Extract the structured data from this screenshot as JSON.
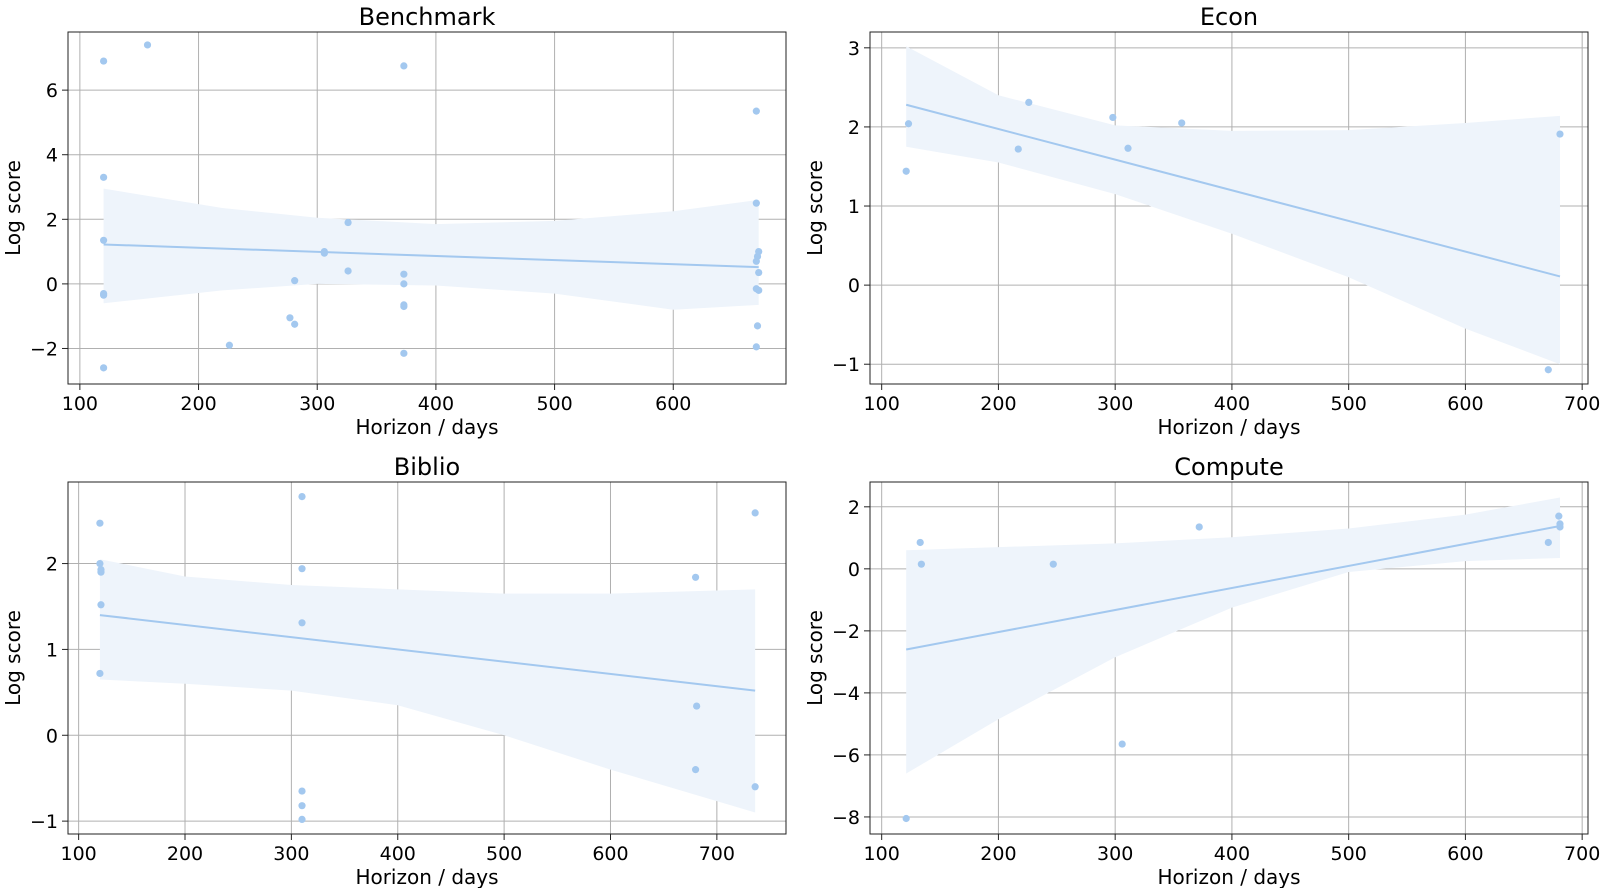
{
  "colors": {
    "point": "#a3c8ef",
    "line": "#a3c8ef",
    "band": "#eef4fb"
  },
  "chart_data": [
    {
      "type": "scatter",
      "title": "Benchmark",
      "xlabel": "Horizon / days",
      "ylabel": "Log score",
      "xlim": [
        90,
        695
      ],
      "ylim": [
        -3.1,
        7.8
      ],
      "xticks": [
        100,
        200,
        300,
        400,
        500,
        600
      ],
      "xtick_labels": [
        "100",
        "200",
        "300",
        "400",
        "500",
        "600"
      ],
      "yticks": [
        -2,
        0,
        2,
        4,
        6
      ],
      "ytick_labels": [
        "−2",
        "0",
        "2",
        "4",
        "6"
      ],
      "grid": true,
      "points": [
        [
          120,
          6.9
        ],
        [
          157,
          7.4
        ],
        [
          120,
          3.3
        ],
        [
          120,
          1.35
        ],
        [
          120,
          -0.3
        ],
        [
          120,
          -0.35
        ],
        [
          120,
          -2.6
        ],
        [
          226,
          -1.9
        ],
        [
          277,
          -1.05
        ],
        [
          281,
          -1.25
        ],
        [
          281,
          0.1
        ],
        [
          306,
          0.95
        ],
        [
          306,
          1.0
        ],
        [
          326,
          1.9
        ],
        [
          326,
          0.4
        ],
        [
          373,
          6.75
        ],
        [
          373,
          0.3
        ],
        [
          373,
          0.0
        ],
        [
          373,
          -0.65
        ],
        [
          373,
          -0.7
        ],
        [
          373,
          -2.15
        ],
        [
          670,
          5.35
        ],
        [
          670,
          2.5
        ],
        [
          672,
          1.0
        ],
        [
          671,
          0.85
        ],
        [
          670,
          0.7
        ],
        [
          672,
          0.35
        ],
        [
          670,
          -0.15
        ],
        [
          672,
          -0.2
        ],
        [
          671,
          -1.3
        ],
        [
          670,
          -1.95
        ]
      ],
      "regression": {
        "x": [
          120,
          672
        ],
        "y": [
          1.22,
          0.52
        ]
      },
      "ci": {
        "x": [
          120,
          220,
          300,
          400,
          500,
          600,
          672
        ],
        "upper": [
          2.95,
          2.35,
          2.05,
          1.85,
          1.95,
          2.25,
          2.6
        ],
        "lower": [
          -0.6,
          -0.2,
          0.0,
          -0.05,
          -0.3,
          -0.8,
          -0.65
        ]
      }
    },
    {
      "type": "scatter",
      "title": "Econ",
      "xlabel": "Horizon / days",
      "ylabel": "Log score",
      "xlim": [
        90,
        705
      ],
      "ylim": [
        -1.25,
        3.2
      ],
      "xticks": [
        100,
        200,
        300,
        400,
        500,
        600,
        700
      ],
      "xtick_labels": [
        "100",
        "200",
        "300",
        "400",
        "500",
        "600",
        "700"
      ],
      "yticks": [
        -1,
        0,
        1,
        2,
        3
      ],
      "ytick_labels": [
        "−1",
        "0",
        "1",
        "2",
        "3"
      ],
      "grid": true,
      "points": [
        [
          121,
          1.44
        ],
        [
          123,
          2.04
        ],
        [
          217,
          1.72
        ],
        [
          226,
          2.31
        ],
        [
          298,
          2.12
        ],
        [
          311,
          1.73
        ],
        [
          357,
          2.05
        ],
        [
          671,
          -1.07
        ],
        [
          681,
          1.91
        ]
      ],
      "regression": {
        "x": [
          121,
          681
        ],
        "y": [
          2.28,
          0.11
        ]
      },
      "ci": {
        "x": [
          121,
          200,
          300,
          400,
          500,
          600,
          681
        ],
        "upper": [
          3.02,
          2.4,
          2.02,
          1.95,
          1.96,
          2.05,
          2.14
        ],
        "lower": [
          1.75,
          1.55,
          1.15,
          0.65,
          0.1,
          -0.55,
          -1.0
        ]
      }
    },
    {
      "type": "scatter",
      "title": "Biblio",
      "xlabel": "Horizon / days",
      "ylabel": "Log score",
      "xlim": [
        90,
        765
      ],
      "ylim": [
        -1.15,
        2.95
      ],
      "xticks": [
        100,
        200,
        300,
        400,
        500,
        600,
        700
      ],
      "xtick_labels": [
        "100",
        "200",
        "300",
        "400",
        "500",
        "600",
        "700"
      ],
      "yticks": [
        -1,
        0,
        1,
        2
      ],
      "ytick_labels": [
        "−1",
        "0",
        "1",
        "2"
      ],
      "grid": true,
      "points": [
        [
          120,
          2.47
        ],
        [
          120,
          2.0
        ],
        [
          121,
          1.93
        ],
        [
          121,
          1.9
        ],
        [
          121,
          1.52
        ],
        [
          120,
          0.72
        ],
        [
          310,
          2.78
        ],
        [
          310,
          1.94
        ],
        [
          310,
          1.31
        ],
        [
          310,
          -0.65
        ],
        [
          310,
          -0.82
        ],
        [
          310,
          -0.98
        ],
        [
          680,
          1.84
        ],
        [
          681,
          0.34
        ],
        [
          680,
          -0.4
        ],
        [
          736,
          2.59
        ],
        [
          736,
          -0.6
        ]
      ],
      "regression": {
        "x": [
          120,
          736
        ],
        "y": [
          1.4,
          0.52
        ]
      },
      "ci": {
        "x": [
          120,
          200,
          300,
          400,
          500,
          600,
          736
        ],
        "upper": [
          2.05,
          1.85,
          1.75,
          1.7,
          1.65,
          1.65,
          1.7
        ],
        "lower": [
          0.65,
          0.6,
          0.52,
          0.35,
          0.0,
          -0.4,
          -0.9
        ]
      }
    },
    {
      "type": "scatter",
      "title": "Compute",
      "xlabel": "Horizon / days",
      "ylabel": "Log score",
      "xlim": [
        90,
        705
      ],
      "ylim": [
        -8.55,
        2.8
      ],
      "xticks": [
        100,
        200,
        300,
        400,
        500,
        600,
        700
      ],
      "xtick_labels": [
        "100",
        "200",
        "300",
        "400",
        "500",
        "600",
        "700"
      ],
      "yticks": [
        -8,
        -6,
        -4,
        -2,
        0,
        2
      ],
      "ytick_labels": [
        "−8",
        "−6",
        "−4",
        "−2",
        "0",
        "2"
      ],
      "grid": true,
      "points": [
        [
          121,
          -8.05
        ],
        [
          133,
          0.85
        ],
        [
          134,
          0.15
        ],
        [
          247,
          0.15
        ],
        [
          306,
          -5.65
        ],
        [
          372,
          1.35
        ],
        [
          671,
          0.85
        ],
        [
          680,
          1.7
        ],
        [
          681,
          1.45
        ],
        [
          681,
          1.35
        ]
      ],
      "regression": {
        "x": [
          121,
          681
        ],
        "y": [
          -2.6,
          1.38
        ]
      },
      "ci": {
        "x": [
          121,
          200,
          300,
          400,
          500,
          600,
          681
        ],
        "upper": [
          0.6,
          0.7,
          0.82,
          1.02,
          1.3,
          1.75,
          2.3
        ],
        "lower": [
          -6.6,
          -4.85,
          -2.85,
          -1.25,
          -0.1,
          0.25,
          0.35
        ]
      }
    }
  ]
}
